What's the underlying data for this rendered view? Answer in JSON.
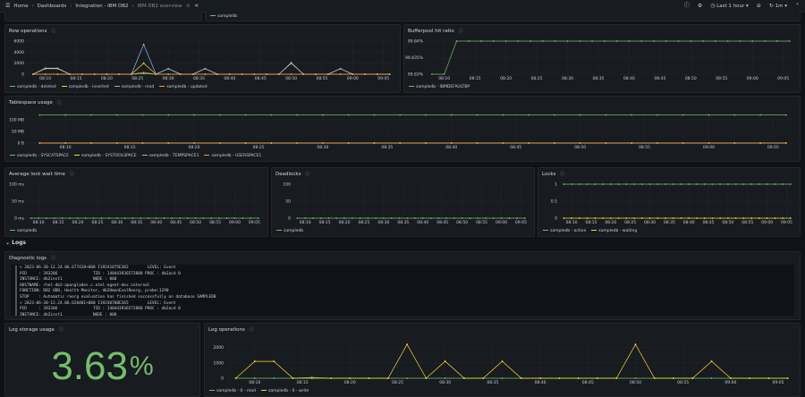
{
  "nav": {
    "breadcrumbs": [
      "Home",
      "Dashboards",
      "Integration - IBM DB2",
      "IBM DB2 overview"
    ],
    "time_range": "Last 1 hour",
    "refresh": "1m"
  },
  "collapsed_legend": "sampledb",
  "colors": {
    "green": "#73bf69",
    "yellow": "#fade2a",
    "blue": "#8ab8ff",
    "orange": "#ff9830"
  },
  "logs_row": "Logs",
  "diagnostic": {
    "title": "Diagnostic logs",
    "entries": [
      [
        "> 2023-06-30-12.24.06.677428+000 I19241875E382        LEVEL: Event",
        "PID     : 393206               TID : 140443936572800 PROC : db2acd 0",
        "INSTANCE: db2inst1             NODE : 000",
        "HOSTNAME: rhel-db2-aponglades.c.otel-agent-dev.internal",
        "FUNCTION: DB2 UDB, Health Monitor, db2HmonEvalReorg, probe:1290",
        "STOP    : Automatic reorg evaluation has finished successfully on database SAMPLEDB"
      ],
      [
        "> 2023-06-30-12.24.06.620401+000 I19240700E365        LEVEL: Event",
        "PID     : 393206               TID : 140443936572800 PROC : db2acd 0",
        "INSTANCE: db2inst1             NODE : 000"
      ]
    ]
  },
  "log_storage": {
    "title": "Log storage usage",
    "value": "3.63",
    "unit": "%"
  },
  "chart_data": [
    {
      "id": "rowops",
      "title": "Row operations",
      "type": "line",
      "x": [
        "08:08",
        "08:10",
        "08:12",
        "08:14",
        "08:16",
        "08:18",
        "08:20",
        "08:22",
        "08:24",
        "08:26",
        "08:28",
        "08:30",
        "08:32",
        "08:34",
        "08:36",
        "08:38",
        "08:40",
        "08:42",
        "08:44",
        "08:46",
        "08:48",
        "08:50",
        "08:52",
        "08:54",
        "08:56",
        "08:58",
        "09:00",
        "09:02",
        "09:04",
        "09:06"
      ],
      "xticks": [
        "08:10",
        "08:15",
        "08:20",
        "08:25",
        "08:30",
        "08:35",
        "08:40",
        "08:45",
        "08:50",
        "08:55",
        "09:00",
        "09:05"
      ],
      "ylim": [
        0,
        6000
      ],
      "yticks": [
        0,
        2000,
        4000,
        6000
      ],
      "ytick_labels": [
        "0",
        "2000",
        "4000",
        "6000"
      ],
      "series": [
        {
          "name": "sampledb - deleted",
          "color": "#73bf69",
          "values": [
            0,
            0,
            0,
            0,
            0,
            0,
            0,
            0,
            0,
            100,
            0,
            0,
            0,
            0,
            0,
            0,
            0,
            0,
            0,
            0,
            0,
            0,
            0,
            0,
            0,
            0,
            0,
            0,
            0,
            0
          ]
        },
        {
          "name": "sampledb - inserted",
          "color": "#fade2a",
          "values": [
            0,
            1000,
            1000,
            0,
            0,
            0,
            0,
            0,
            0,
            2000,
            0,
            1000,
            0,
            0,
            1000,
            0,
            0,
            0,
            0,
            0,
            0,
            2000,
            0,
            0,
            0,
            1000,
            0,
            0,
            0,
            0
          ]
        },
        {
          "name": "sampledb - read",
          "color": "#8ab8ff",
          "values": [
            0,
            1100,
            1100,
            0,
            0,
            0,
            0,
            0,
            0,
            5400,
            0,
            1000,
            0,
            0,
            1000,
            0,
            0,
            0,
            0,
            0,
            0,
            2100,
            0,
            0,
            0,
            1000,
            0,
            0,
            0,
            0
          ]
        },
        {
          "name": "sampledb - updated",
          "color": "#ff9830",
          "values": [
            0,
            0,
            0,
            0,
            0,
            0,
            0,
            0,
            0,
            300,
            0,
            0,
            0,
            0,
            0,
            0,
            0,
            0,
            0,
            0,
            0,
            0,
            0,
            0,
            0,
            0,
            0,
            0,
            0,
            0
          ]
        }
      ]
    },
    {
      "id": "bufferpool",
      "title": "Bufferpool hit ratio",
      "type": "line",
      "x": [
        "08:08",
        "08:10",
        "08:12",
        "08:14",
        "08:16",
        "08:18",
        "08:20",
        "08:22",
        "08:24",
        "08:26",
        "08:28",
        "08:30",
        "08:32",
        "08:34",
        "08:36",
        "08:38",
        "08:40",
        "08:42",
        "08:44",
        "08:46",
        "08:48",
        "08:50",
        "08:52",
        "08:54",
        "08:56",
        "08:58",
        "09:00",
        "09:02",
        "09:04",
        "09:06"
      ],
      "xticks": [
        "08:10",
        "08:15",
        "08:20",
        "08:25",
        "08:30",
        "08:35",
        "08:40",
        "08:45",
        "08:50",
        "08:55",
        "09:00",
        "09:05"
      ],
      "ylim": [
        99.83,
        99.84
      ],
      "yticks": [
        99.83,
        99.835,
        99.84
      ],
      "ytick_labels": [
        "99.83%",
        "99.835%",
        "99.84%"
      ],
      "series": [
        {
          "name": "sampledb - IBMDEFAULTBP",
          "color": "#73bf69",
          "values": [
            99.83,
            99.83,
            99.84,
            99.84,
            99.84,
            99.84,
            99.84,
            99.84,
            99.84,
            99.84,
            99.84,
            99.84,
            99.84,
            99.84,
            99.84,
            99.84,
            99.84,
            99.84,
            99.84,
            99.84,
            99.84,
            99.84,
            99.84,
            99.84,
            99.84,
            99.84,
            99.84,
            99.84,
            99.84,
            99.84
          ]
        }
      ]
    },
    {
      "id": "tablespace",
      "title": "Tablespace usage",
      "type": "line",
      "x": [
        "08:08",
        "08:10",
        "08:12",
        "08:14",
        "08:16",
        "08:18",
        "08:20",
        "08:22",
        "08:24",
        "08:26",
        "08:28",
        "08:30",
        "08:32",
        "08:34",
        "08:36",
        "08:38",
        "08:40",
        "08:42",
        "08:44",
        "08:46",
        "08:48",
        "08:50",
        "08:52",
        "08:54",
        "08:56",
        "08:58",
        "09:00",
        "09:02",
        "09:04",
        "09:06"
      ],
      "xticks": [
        "08:10",
        "08:15",
        "08:20",
        "08:25",
        "08:30",
        "08:35",
        "08:40",
        "08:45",
        "08:50",
        "08:55",
        "09:00",
        "09:05"
      ],
      "ylim": [
        0,
        130
      ],
      "yticks": [
        0,
        50,
        100
      ],
      "ytick_labels": [
        "0 B",
        "50 MB",
        "100 MB"
      ],
      "series": [
        {
          "name": "sampledb - SYSCATSPACE",
          "color": "#73bf69",
          "values": [
            120,
            120,
            120,
            120,
            120,
            120,
            120,
            120,
            120,
            120,
            120,
            120,
            120,
            120,
            120,
            120,
            120,
            120,
            120,
            120,
            120,
            120,
            120,
            120,
            120,
            120,
            120,
            120,
            120,
            120
          ]
        },
        {
          "name": "sampledb - SYSTOOLSPACE",
          "color": "#fade2a",
          "values": [
            0,
            0,
            0,
            0,
            0,
            0,
            0,
            0,
            0,
            0,
            0,
            0,
            0,
            0,
            0,
            0,
            0,
            0,
            0,
            0,
            0,
            0,
            0,
            0,
            0,
            0,
            0,
            0,
            0,
            0
          ]
        },
        {
          "name": "sampledb - TEMPSPACE1",
          "color": "#8ab8ff",
          "values": [
            0,
            0,
            0,
            0,
            0,
            0,
            0,
            0,
            0,
            0,
            0,
            0,
            0,
            0,
            0,
            0,
            0,
            0,
            0,
            0,
            0,
            0,
            0,
            0,
            0,
            0,
            0,
            0,
            0,
            0
          ]
        },
        {
          "name": "sampledb - USERSPACE1",
          "color": "#ff9830",
          "values": [
            0,
            0,
            0,
            0,
            0,
            0,
            0,
            0,
            0,
            0,
            0,
            0,
            0,
            0,
            0,
            0,
            0,
            0,
            0,
            0,
            0,
            0,
            0,
            0,
            0,
            0,
            0,
            0,
            0,
            0
          ]
        }
      ]
    },
    {
      "id": "lockwait",
      "title": "Average lock wait time",
      "type": "line",
      "x": [
        "08:08",
        "08:10",
        "08:12",
        "08:14",
        "08:16",
        "08:18",
        "08:20",
        "08:22",
        "08:24",
        "08:26",
        "08:28",
        "08:30",
        "08:32",
        "08:34",
        "08:36",
        "08:38",
        "08:40",
        "08:42",
        "08:44",
        "08:46",
        "08:48",
        "08:50",
        "08:52",
        "08:54",
        "08:56",
        "08:58",
        "09:00",
        "09:02",
        "09:04",
        "09:06"
      ],
      "xticks": [
        "08:10",
        "08:15",
        "08:20",
        "08:25",
        "08:30",
        "08:35",
        "08:40",
        "08:45",
        "08:50",
        "08:55",
        "09:00",
        "09:05"
      ],
      "ylim": [
        0,
        100
      ],
      "yticks": [
        0,
        50,
        100
      ],
      "ytick_labels": [
        "0 ms",
        "50 ms",
        "100 ms"
      ],
      "series": [
        {
          "name": "sampledb",
          "color": "#73bf69",
          "values": [
            0,
            0,
            0,
            0,
            0,
            0,
            0,
            0,
            0,
            0,
            0,
            0,
            0,
            0,
            0,
            0,
            0,
            0,
            0,
            0,
            0,
            0,
            0,
            0,
            0,
            0,
            0,
            0,
            0,
            0
          ]
        }
      ]
    },
    {
      "id": "deadlocks",
      "title": "Deadlocks",
      "type": "line",
      "x": [
        "08:08",
        "08:10",
        "08:12",
        "08:14",
        "08:16",
        "08:18",
        "08:20",
        "08:22",
        "08:24",
        "08:26",
        "08:28",
        "08:30",
        "08:32",
        "08:34",
        "08:36",
        "08:38",
        "08:40",
        "08:42",
        "08:44",
        "08:46",
        "08:48",
        "08:50",
        "08:52",
        "08:54",
        "08:56",
        "08:58",
        "09:00",
        "09:02",
        "09:04",
        "09:06"
      ],
      "xticks": [
        "08:10",
        "08:15",
        "08:20",
        "08:25",
        "08:30",
        "08:35",
        "08:40",
        "08:45",
        "08:50",
        "08:55",
        "09:00",
        "09:05"
      ],
      "ylim": [
        0,
        100
      ],
      "yticks": [
        0,
        50,
        100
      ],
      "ytick_labels": [
        "0",
        "50",
        "100"
      ],
      "series": [
        {
          "name": "sampledb",
          "color": "#73bf69",
          "values": [
            0,
            0,
            0,
            0,
            0,
            0,
            0,
            0,
            0,
            0,
            0,
            0,
            0,
            0,
            0,
            0,
            0,
            0,
            0,
            0,
            0,
            0,
            0,
            0,
            0,
            0,
            0,
            0,
            0,
            0
          ]
        }
      ]
    },
    {
      "id": "locks",
      "title": "Locks",
      "type": "line",
      "x": [
        "08:08",
        "08:10",
        "08:12",
        "08:14",
        "08:16",
        "08:18",
        "08:20",
        "08:22",
        "08:24",
        "08:26",
        "08:28",
        "08:30",
        "08:32",
        "08:34",
        "08:36",
        "08:38",
        "08:40",
        "08:42",
        "08:44",
        "08:46",
        "08:48",
        "08:50",
        "08:52",
        "08:54",
        "08:56",
        "08:58",
        "09:00",
        "09:02",
        "09:04",
        "09:06"
      ],
      "xticks": [
        "08:10",
        "08:15",
        "08:20",
        "08:25",
        "08:30",
        "08:35",
        "08:40",
        "08:45",
        "08:50",
        "08:55",
        "09:00",
        "09:05"
      ],
      "ylim": [
        0,
        1
      ],
      "yticks": [
        0,
        0.5,
        1
      ],
      "ytick_labels": [
        "0",
        "0.5",
        "1"
      ],
      "series": [
        {
          "name": "sampledb - active",
          "color": "#73bf69",
          "values": [
            1,
            1,
            1,
            1,
            1,
            1,
            1,
            1,
            1,
            1,
            1,
            1,
            1,
            1,
            1,
            1,
            1,
            1,
            1,
            1,
            1,
            1,
            1,
            1,
            1,
            1,
            1,
            1,
            1,
            1
          ]
        },
        {
          "name": "sampledb - waiting",
          "color": "#fade2a",
          "values": [
            0,
            0,
            0,
            0,
            0,
            0,
            0,
            0,
            0,
            0,
            0,
            0,
            0,
            0,
            0,
            0,
            0,
            0,
            0,
            0,
            0,
            0,
            0,
            0,
            0,
            0,
            0,
            0,
            0,
            0
          ]
        }
      ]
    },
    {
      "id": "logops",
      "title": "Log operations",
      "type": "line",
      "x": [
        "08:08",
        "08:10",
        "08:12",
        "08:14",
        "08:16",
        "08:18",
        "08:20",
        "08:22",
        "08:24",
        "08:26",
        "08:28",
        "08:30",
        "08:32",
        "08:34",
        "08:36",
        "08:38",
        "08:40",
        "08:42",
        "08:44",
        "08:46",
        "08:48",
        "08:50",
        "08:52",
        "08:54",
        "08:56",
        "08:58",
        "09:00",
        "09:02",
        "09:04",
        "09:06"
      ],
      "xticks": [
        "08:10",
        "08:15",
        "08:20",
        "08:25",
        "08:30",
        "08:35",
        "08:40",
        "08:45",
        "08:50",
        "08:55",
        "09:00",
        "09:05"
      ],
      "ylim": [
        0,
        2500
      ],
      "yticks": [
        0,
        1000,
        2000
      ],
      "ytick_labels": [
        "0",
        "1000",
        "2000"
      ],
      "series": [
        {
          "name": "sampledb - 0 - read",
          "color": "#73bf69",
          "values": [
            0,
            0,
            0,
            0,
            50,
            0,
            0,
            0,
            0,
            0,
            0,
            0,
            0,
            0,
            0,
            0,
            0,
            0,
            0,
            0,
            0,
            0,
            0,
            0,
            0,
            0,
            0,
            0,
            0,
            0
          ]
        },
        {
          "name": "sampledb - 0 - write",
          "color": "#fade2a",
          "values": [
            0,
            1100,
            1100,
            0,
            0,
            0,
            0,
            0,
            0,
            2200,
            0,
            1100,
            0,
            0,
            1100,
            0,
            0,
            0,
            0,
            0,
            0,
            2200,
            0,
            0,
            0,
            1100,
            0,
            0,
            0,
            0
          ]
        }
      ]
    }
  ]
}
